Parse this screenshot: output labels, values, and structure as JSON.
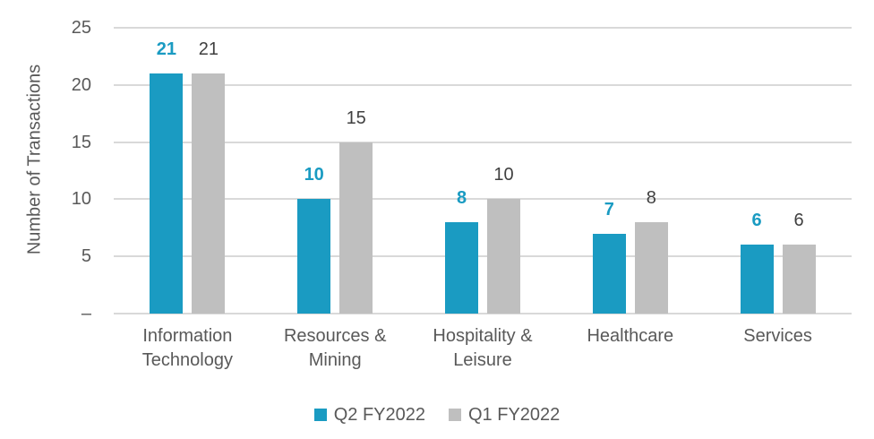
{
  "chart_data": {
    "type": "bar",
    "title": "",
    "xlabel": "",
    "ylabel": "Number of Transactions",
    "categories": [
      "Information Technology",
      "Resources & Mining",
      "Hospitality & Leisure",
      "Healthcare",
      "Services"
    ],
    "series": [
      {
        "name": "Q2 FY2022",
        "values": [
          21,
          10,
          8,
          7,
          6
        ],
        "color": "#1a9bc2",
        "label_color": "#1a9bc2",
        "label_bold": true
      },
      {
        "name": "Q1 FY2022",
        "values": [
          21,
          15,
          10,
          8,
          6
        ],
        "color": "#bfbfbf",
        "label_color": "#404040",
        "label_bold": false
      }
    ],
    "y_axis": {
      "min": 0,
      "max": 25,
      "step": 5,
      "tick_labels": [
        "–",
        "5",
        "10",
        "15",
        "20",
        "25"
      ]
    },
    "ylim": [
      0,
      25
    ],
    "grid": true,
    "legend_position": "bottom",
    "colors": {
      "background": "#ffffff",
      "gridline": "#d9d9d9",
      "axis_text": "#595959",
      "data_label_text": "#404040"
    }
  }
}
